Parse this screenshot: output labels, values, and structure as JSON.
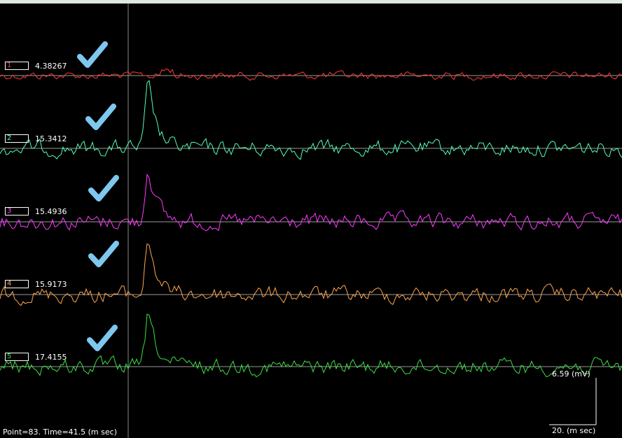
{
  "channels": [
    {
      "number": "1",
      "value": "4.38267",
      "color": "#ff3b30",
      "selected": true
    },
    {
      "number": "2",
      "value": "15.3412",
      "color": "#55ffb5",
      "selected": true
    },
    {
      "number": "3",
      "value": "15.4936",
      "color": "#ff3cff",
      "selected": true
    },
    {
      "number": "4",
      "value": "15.9173",
      "color": "#ffa64d",
      "selected": true
    },
    {
      "number": "5",
      "value": "17.4155",
      "color": "#3ce043",
      "selected": true
    }
  ],
  "scale": {
    "amplitude_label": "6.59 (mV)",
    "time_label": "20. (m sec)"
  },
  "status": {
    "text": "Point=83.  Time=41.5 (m sec)"
  },
  "icons": {
    "check": "check-icon",
    "check_color": "#7ec8f0"
  },
  "colors": {
    "background": "#000000",
    "baseline": "#9a9a9a",
    "cursor": "#888888"
  }
}
